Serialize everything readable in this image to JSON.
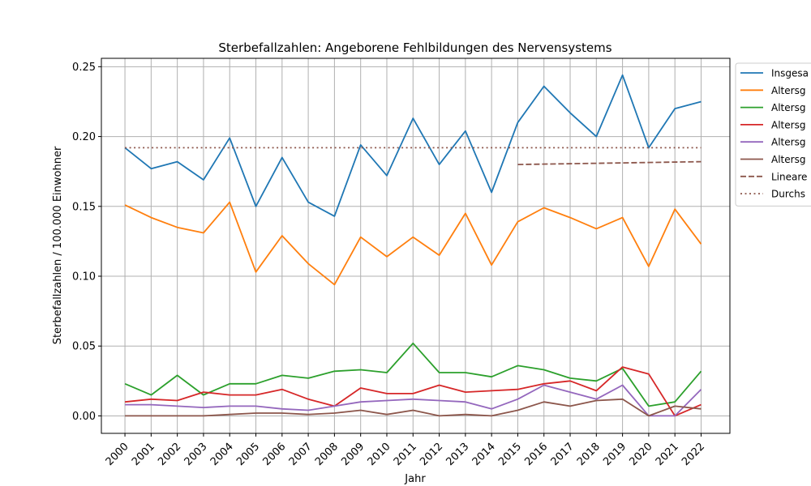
{
  "chart_data": {
    "type": "line",
    "title": "Sterbefallzahlen: Angeborene Fehlbildungen des Nervensystems",
    "xlabel": "Jahr",
    "ylabel": "Sterbefallzahlen / 100.000 Einwohner",
    "x": [
      2000,
      2001,
      2002,
      2003,
      2004,
      2005,
      2006,
      2007,
      2008,
      2009,
      2010,
      2011,
      2012,
      2013,
      2014,
      2015,
      2016,
      2017,
      2018,
      2019,
      2020,
      2021,
      2022
    ],
    "x_tick_labels": [
      "2000",
      "2001",
      "2002",
      "2003",
      "2004",
      "2005",
      "2006",
      "2007",
      "2008",
      "2009",
      "2010",
      "2011",
      "2012",
      "2013",
      "2014",
      "2015",
      "2016",
      "2017",
      "2018",
      "2019",
      "2020",
      "2021",
      "2022"
    ],
    "y_ticks": [
      0.0,
      0.05,
      0.1,
      0.15,
      0.2,
      0.25
    ],
    "y_tick_labels": [
      "0.00",
      "0.05",
      "0.10",
      "0.15",
      "0.20",
      "0.25"
    ],
    "ylim": [
      -0.0125,
      0.256
    ],
    "xlim": [
      1999.1,
      2023.1
    ],
    "grid": true,
    "legend_position": "outside top-right",
    "series": [
      {
        "name": "Insgesa",
        "color": "#1f77b4",
        "style": "solid",
        "values": [
          0.192,
          0.177,
          0.182,
          0.169,
          0.199,
          0.15,
          0.185,
          0.153,
          0.143,
          0.194,
          0.172,
          0.213,
          0.18,
          0.204,
          0.16,
          0.21,
          0.236,
          0.217,
          0.2,
          0.244,
          0.192,
          0.22,
          0.225
        ]
      },
      {
        "name": "Altersg",
        "color": "#ff7f0e",
        "style": "solid",
        "values": [
          0.151,
          0.142,
          0.135,
          0.131,
          0.153,
          0.103,
          0.129,
          0.109,
          0.094,
          0.128,
          0.114,
          0.128,
          0.115,
          0.145,
          0.108,
          0.139,
          0.149,
          0.142,
          0.134,
          0.142,
          0.107,
          0.148,
          0.123
        ]
      },
      {
        "name": "Altersg",
        "color": "#2ca02c",
        "style": "solid",
        "values": [
          0.023,
          0.015,
          0.029,
          0.015,
          0.023,
          0.023,
          0.029,
          0.027,
          0.032,
          0.033,
          0.031,
          0.052,
          0.031,
          0.031,
          0.028,
          0.036,
          0.033,
          0.027,
          0.025,
          0.034,
          0.007,
          0.01,
          0.032
        ]
      },
      {
        "name": "Altersg",
        "color": "#d62728",
        "style": "solid",
        "values": [
          0.01,
          0.012,
          0.011,
          0.017,
          0.015,
          0.015,
          0.019,
          0.012,
          0.007,
          0.02,
          0.016,
          0.016,
          0.022,
          0.017,
          0.018,
          0.019,
          0.023,
          0.025,
          0.018,
          0.035,
          0.03,
          0.0,
          0.008
        ]
      },
      {
        "name": "Altersg",
        "color": "#9467bd",
        "style": "solid",
        "values": [
          0.008,
          0.008,
          0.007,
          0.006,
          0.007,
          0.007,
          0.005,
          0.004,
          0.007,
          0.01,
          0.011,
          0.012,
          0.011,
          0.01,
          0.005,
          0.012,
          0.022,
          0.017,
          0.012,
          0.022,
          0.0,
          0.0,
          0.019
        ]
      },
      {
        "name": "Altersg",
        "color": "#8c564b",
        "style": "solid",
        "values": [
          0.0,
          0.0,
          0.0,
          0.0,
          0.001,
          0.002,
          0.002,
          0.001,
          0.002,
          0.004,
          0.001,
          0.004,
          0.0,
          0.001,
          0.0,
          0.004,
          0.01,
          0.007,
          0.011,
          0.012,
          0.0,
          0.007,
          0.005
        ]
      },
      {
        "name": "Lineare",
        "color": "#8c564b",
        "style": "dashed",
        "x": [
          2015,
          2022
        ],
        "values": [
          0.18,
          0.182
        ]
      },
      {
        "name": "Durchs",
        "color": "#8c564b",
        "style": "dotted",
        "x": [
          2000,
          2022
        ],
        "values": [
          0.192,
          0.192
        ]
      }
    ]
  }
}
